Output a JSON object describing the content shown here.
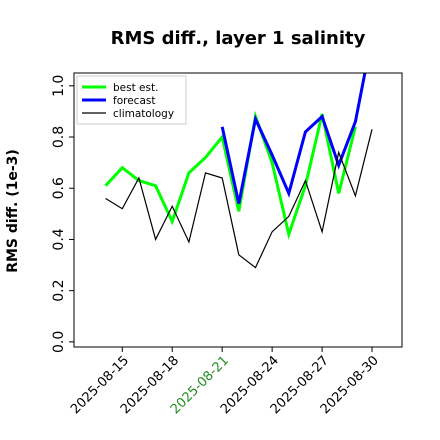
{
  "chart_data": {
    "type": "line",
    "title": "RMS diff., layer 1 salinity",
    "ylabel": "RMS diff. (1e-3)",
    "xlabel": "",
    "ylim": [
      -0.02,
      1.05
    ],
    "yticks": [
      0.0,
      0.2,
      0.4,
      0.6,
      0.8,
      1.0
    ],
    "ytick_labels": [
      "0.0",
      "0.2",
      "0.4",
      "0.6",
      "0.8",
      "1.0"
    ],
    "xticks": [
      {
        "t": 0,
        "label": "2025-08-15",
        "color": "#000000"
      },
      {
        "t": 3,
        "label": "2025-08-18",
        "color": "#000000"
      },
      {
        "t": 6,
        "label": "2025-08-21",
        "color": "#228B22"
      },
      {
        "t": 9,
        "label": "2025-08-24",
        "color": "#000000"
      },
      {
        "t": 12,
        "label": "2025-08-27",
        "color": "#000000"
      },
      {
        "t": 15,
        "label": "2025-08-30",
        "color": "#000000"
      }
    ],
    "xlim": [
      -2.9,
      16.8
    ],
    "legend_position": "top-left",
    "grid": false,
    "series": [
      {
        "name": "best est.",
        "color": "#00ff00",
        "width": 3,
        "x": [
          -1,
          0,
          1,
          2,
          3,
          4,
          5,
          6,
          7,
          8,
          9,
          10,
          11,
          12,
          13,
          14
        ],
        "y": [
          0.61,
          0.68,
          0.63,
          0.61,
          0.47,
          0.66,
          0.72,
          0.8,
          0.51,
          0.88,
          0.7,
          0.42,
          0.61,
          0.89,
          0.58,
          0.84
        ]
      },
      {
        "name": "forecast",
        "color": "#0000ff",
        "width": 3,
        "x": [
          6,
          7,
          8,
          9,
          10,
          11,
          12,
          13,
          14,
          14.6
        ],
        "y": [
          0.84,
          0.54,
          0.87,
          0.73,
          0.58,
          0.82,
          0.88,
          0.69,
          0.86,
          1.06
        ]
      },
      {
        "name": "climatology",
        "color": "#000000",
        "width": 1.2,
        "x": [
          -1,
          0,
          1,
          2,
          3,
          4,
          5,
          6,
          7,
          8,
          9,
          10,
          11,
          12,
          13,
          14,
          15
        ],
        "y": [
          0.56,
          0.52,
          0.64,
          0.4,
          0.53,
          0.39,
          0.66,
          0.64,
          0.34,
          0.29,
          0.43,
          0.49,
          0.63,
          0.43,
          0.74,
          0.57,
          0.83
        ]
      }
    ]
  }
}
